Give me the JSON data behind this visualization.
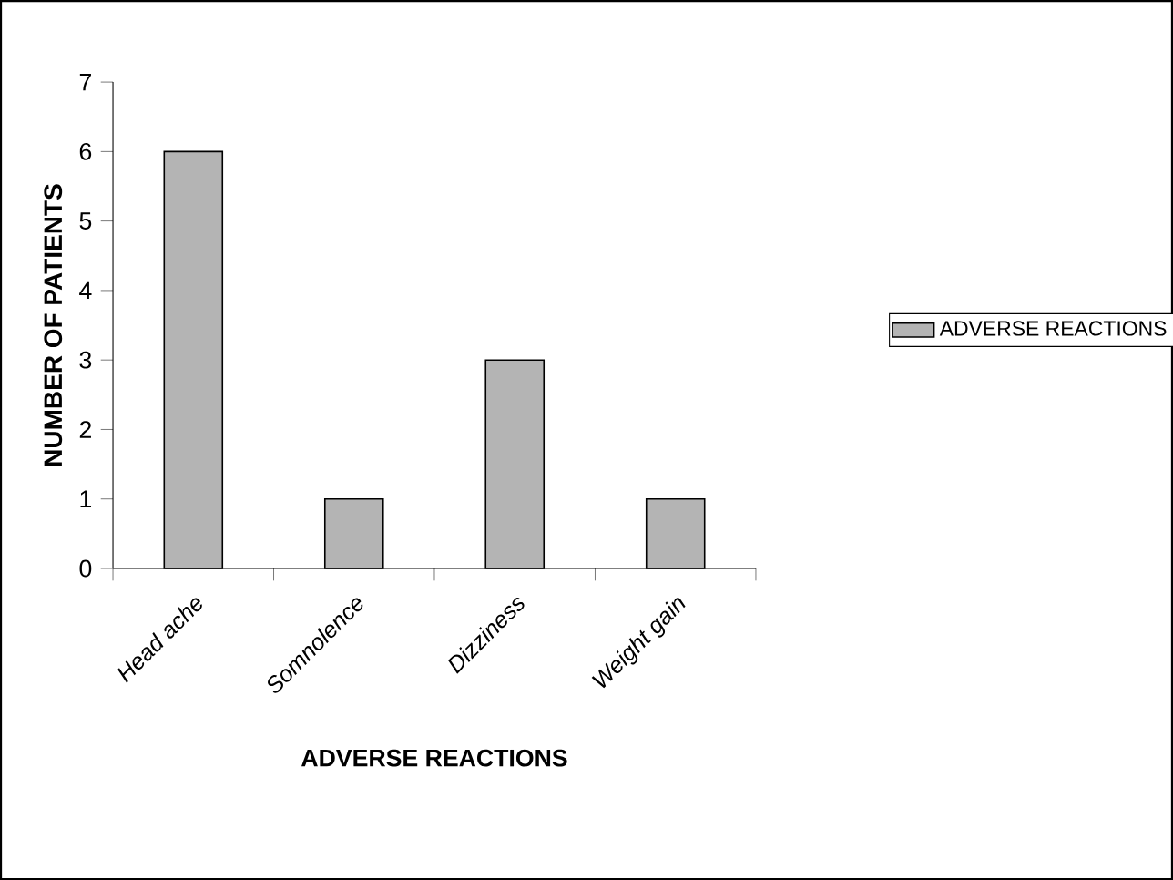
{
  "chart_data": {
    "type": "bar",
    "xlabel": "ADVERSE REACTIONS",
    "ylabel": "NUMBER OF PATIENTS",
    "categories": [
      "Head ache",
      "Somnolence",
      "Dizziness",
      "Weight gain"
    ],
    "series": [
      {
        "name": "ADVERSE REACTIONS",
        "color": "#b4b4b4",
        "values": [
          6,
          1,
          3,
          1
        ]
      }
    ],
    "ylim": [
      0,
      7
    ],
    "yticks": [
      0,
      1,
      2,
      3,
      4,
      5,
      6,
      7
    ],
    "legend": "right"
  }
}
